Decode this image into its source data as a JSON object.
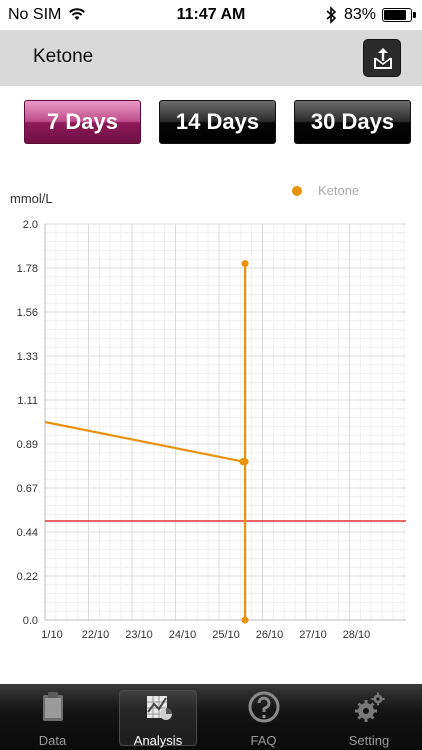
{
  "status_bar": {
    "carrier": "No SIM",
    "time": "11:47 AM",
    "battery": "83%",
    "battery_level": 0.83
  },
  "nav": {
    "title": "Ketone",
    "export_icon": "export-icon"
  },
  "period_buttons": [
    {
      "label": "7 Days",
      "active": true
    },
    {
      "label": "14 Days",
      "active": false
    },
    {
      "label": "30 Days",
      "active": false
    }
  ],
  "colors": {
    "series": "#e8920e",
    "threshold": "#e53030",
    "active_tab": "#b03a7a",
    "grid": "#e6e6e6"
  },
  "chart_data": {
    "type": "line",
    "ylabel": "mmol/L",
    "ylim": [
      0.0,
      2.0
    ],
    "yticks": [
      "0.0",
      "0.22",
      "0.44",
      "0.67",
      "0.89",
      "1.11",
      "1.33",
      "1.56",
      "1.78",
      "2.0"
    ],
    "xticks": [
      "1/10",
      "22/10",
      "23/10",
      "24/10",
      "25/10",
      "26/10",
      "27/10",
      "28/10"
    ],
    "x_scale_note": "",
    "legend": {
      "position": "top-right"
    },
    "grid": true,
    "threshold": 0.5,
    "series": [
      {
        "name": "Ketone",
        "points": [
          {
            "x": 21.0,
            "y": 1.0
          },
          {
            "x": 25.55,
            "y": 0.8
          },
          {
            "x": 25.6,
            "y": 0.8
          },
          {
            "x": 25.6,
            "y": 0.0
          },
          {
            "x": 25.6,
            "y": 1.8
          }
        ]
      }
    ]
  },
  "tabs": [
    {
      "label": "Data",
      "icon": "clipboard-icon",
      "active": false
    },
    {
      "label": "Analysis",
      "icon": "chart-analysis-icon",
      "active": true
    },
    {
      "label": "FAQ",
      "icon": "question-icon",
      "active": false
    },
    {
      "label": "Setting",
      "icon": "gears-icon",
      "active": false
    }
  ]
}
